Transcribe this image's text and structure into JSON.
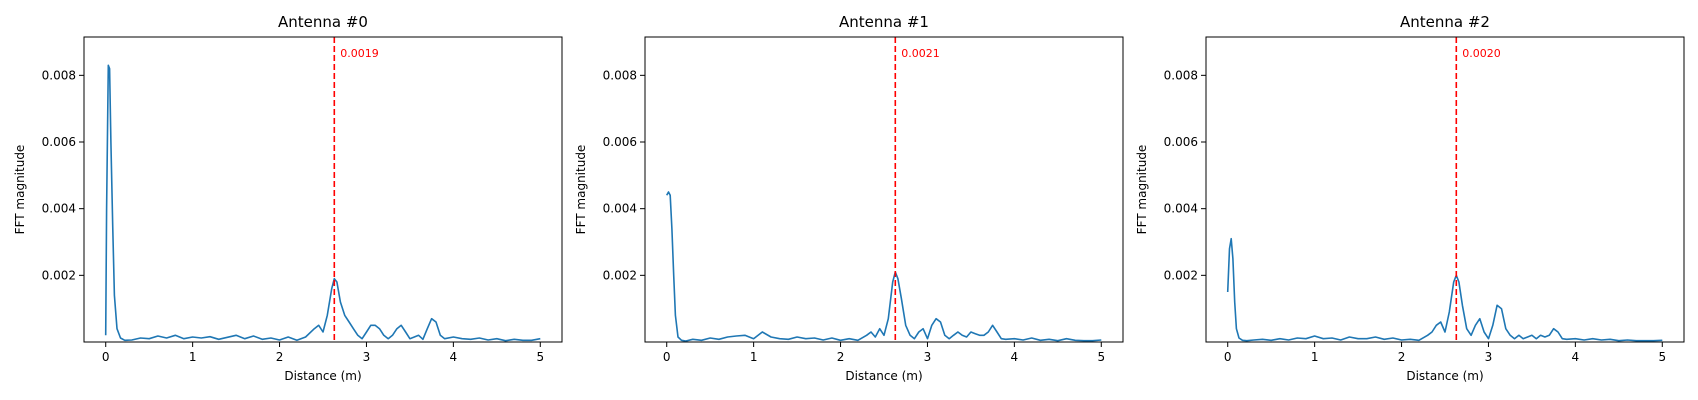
{
  "chart_data": [
    {
      "type": "line",
      "title": "Antenna #0",
      "xlabel": "Distance (m)",
      "ylabel": "FFT magnitude",
      "xlim": [
        -0.25,
        5.25
      ],
      "ylim": [
        0.0,
        0.00915
      ],
      "xticks": [
        0,
        1,
        2,
        3,
        4,
        5
      ],
      "yticks": [
        0.002,
        0.004,
        0.006,
        0.008
      ],
      "ytick_labels": [
        "0.002",
        "0.004",
        "0.006",
        "0.008"
      ],
      "grid": false,
      "line_color": "#1f77b4",
      "marker": {
        "x": 2.63,
        "label": "0.0019",
        "color": "#ff0000"
      },
      "series": [
        {
          "x": [
            0,
            0.01,
            0.03,
            0.045,
            0.06,
            0.08,
            0.1,
            0.13,
            0.17,
            0.22,
            0.3,
            0.4,
            0.5,
            0.6,
            0.7,
            0.8,
            0.9,
            1.0,
            1.1,
            1.2,
            1.3,
            1.4,
            1.5,
            1.6,
            1.7,
            1.8,
            1.9,
            2.0,
            2.1,
            2.2,
            2.3,
            2.4,
            2.45,
            2.5,
            2.55,
            2.6,
            2.63,
            2.66,
            2.7,
            2.75,
            2.8,
            2.85,
            2.9,
            2.95,
            3.0,
            3.05,
            3.1,
            3.15,
            3.2,
            3.25,
            3.3,
            3.35,
            3.4,
            3.45,
            3.5,
            3.55,
            3.6,
            3.65,
            3.7,
            3.75,
            3.8,
            3.85,
            3.9,
            4.0,
            4.1,
            4.2,
            4.3,
            4.4,
            4.5,
            4.6,
            4.7,
            4.8,
            4.9,
            5.0
          ],
          "y": [
            0.0002,
            0.004,
            0.0083,
            0.0082,
            0.006,
            0.0035,
            0.0014,
            0.0004,
            0.00012,
            5e-05,
            6e-05,
            0.00012,
            0.0001,
            0.00018,
            0.00012,
            0.0002,
            0.0001,
            0.00015,
            0.00012,
            0.00016,
            8e-05,
            0.00014,
            0.0002,
            0.0001,
            0.00018,
            8e-05,
            0.00012,
            6e-05,
            0.00015,
            5e-05,
            0.00015,
            0.0004,
            0.0005,
            0.0003,
            0.0008,
            0.0016,
            0.0019,
            0.0018,
            0.0012,
            0.0008,
            0.0006,
            0.0004,
            0.0002,
            0.0001,
            0.0003,
            0.0005,
            0.0005,
            0.0004,
            0.0002,
            0.0001,
            0.0002,
            0.0004,
            0.0005,
            0.0003,
            0.0001,
            0.00015,
            0.0002,
            8e-05,
            0.0004,
            0.0007,
            0.0006,
            0.0002,
            0.0001,
            0.00015,
            0.0001,
            8e-05,
            0.00012,
            6e-05,
            0.0001,
            4e-05,
            8e-05,
            5e-05,
            5e-05,
            0.0001
          ]
        }
      ]
    },
    {
      "type": "line",
      "title": "Antenna #1",
      "xlabel": "Distance (m)",
      "ylabel": "FFT magnitude",
      "xlim": [
        -0.25,
        5.25
      ],
      "ylim": [
        0.0,
        0.00915
      ],
      "xticks": [
        0,
        1,
        2,
        3,
        4,
        5
      ],
      "yticks": [
        0.002,
        0.004,
        0.006,
        0.008
      ],
      "ytick_labels": [
        "0.002",
        "0.004",
        "0.006",
        "0.008"
      ],
      "grid": false,
      "line_color": "#1f77b4",
      "marker": {
        "x": 2.63,
        "label": "0.0021",
        "color": "#ff0000"
      },
      "series": [
        {
          "x": [
            0,
            0.02,
            0.04,
            0.06,
            0.08,
            0.1,
            0.13,
            0.17,
            0.22,
            0.3,
            0.4,
            0.5,
            0.6,
            0.7,
            0.8,
            0.9,
            1.0,
            1.1,
            1.2,
            1.3,
            1.4,
            1.5,
            1.6,
            1.7,
            1.8,
            1.9,
            2.0,
            2.1,
            2.2,
            2.3,
            2.35,
            2.4,
            2.45,
            2.5,
            2.55,
            2.6,
            2.63,
            2.66,
            2.7,
            2.75,
            2.8,
            2.85,
            2.9,
            2.95,
            3.0,
            3.05,
            3.1,
            3.15,
            3.2,
            3.25,
            3.3,
            3.35,
            3.4,
            3.45,
            3.5,
            3.55,
            3.6,
            3.65,
            3.7,
            3.75,
            3.8,
            3.85,
            3.9,
            4.0,
            4.1,
            4.2,
            4.3,
            4.4,
            4.5,
            4.6,
            4.7,
            4.8,
            4.9,
            5.0
          ],
          "y": [
            0.0044,
            0.0045,
            0.0044,
            0.0034,
            0.002,
            0.0008,
            0.00015,
            5e-05,
            3e-05,
            8e-05,
            5e-05,
            0.00012,
            8e-05,
            0.00015,
            0.00018,
            0.0002,
            0.0001,
            0.0003,
            0.00015,
            0.0001,
            8e-05,
            0.00015,
            0.0001,
            0.00012,
            6e-05,
            0.00012,
            5e-05,
            0.0001,
            5e-05,
            0.0002,
            0.0003,
            0.00015,
            0.0004,
            0.0002,
            0.0007,
            0.0018,
            0.0021,
            0.0019,
            0.0013,
            0.0005,
            0.0002,
            0.0001,
            0.0003,
            0.0004,
            0.0001,
            0.0005,
            0.0007,
            0.0006,
            0.0002,
            0.0001,
            0.0002,
            0.0003,
            0.0002,
            0.00015,
            0.0003,
            0.00025,
            0.0002,
            0.0002,
            0.0003,
            0.0005,
            0.0003,
            0.0001,
            8e-05,
            0.0001,
            6e-05,
            0.00012,
            5e-05,
            8e-05,
            4e-05,
            0.0001,
            5e-05,
            4e-05,
            4e-05,
            6e-05
          ]
        }
      ]
    },
    {
      "type": "line",
      "title": "Antenna #2",
      "xlabel": "Distance (m)",
      "ylabel": "FFT magnitude",
      "xlim": [
        -0.25,
        5.25
      ],
      "ylim": [
        0.0,
        0.00915
      ],
      "xticks": [
        0,
        1,
        2,
        3,
        4,
        5
      ],
      "yticks": [
        0.002,
        0.004,
        0.006,
        0.008
      ],
      "ytick_labels": [
        "0.002",
        "0.004",
        "0.006",
        "0.008"
      ],
      "grid": false,
      "line_color": "#1f77b4",
      "marker": {
        "x": 2.63,
        "label": "0.0020",
        "color": "#ff0000"
      },
      "series": [
        {
          "x": [
            0,
            0.02,
            0.04,
            0.06,
            0.08,
            0.1,
            0.13,
            0.17,
            0.22,
            0.3,
            0.4,
            0.5,
            0.6,
            0.7,
            0.8,
            0.9,
            1.0,
            1.1,
            1.2,
            1.3,
            1.4,
            1.5,
            1.6,
            1.7,
            1.8,
            1.9,
            2.0,
            2.1,
            2.2,
            2.3,
            2.35,
            2.4,
            2.45,
            2.5,
            2.55,
            2.6,
            2.63,
            2.66,
            2.7,
            2.75,
            2.8,
            2.85,
            2.9,
            2.95,
            3.0,
            3.05,
            3.1,
            3.15,
            3.2,
            3.25,
            3.3,
            3.35,
            3.4,
            3.45,
            3.5,
            3.55,
            3.6,
            3.65,
            3.7,
            3.75,
            3.8,
            3.85,
            3.9,
            4.0,
            4.1,
            4.2,
            4.3,
            4.4,
            4.5,
            4.6,
            4.7,
            4.8,
            4.9,
            5.0
          ],
          "y": [
            0.0015,
            0.0028,
            0.0031,
            0.0025,
            0.0012,
            0.0004,
            0.00012,
            5e-05,
            4e-05,
            6e-05,
            8e-05,
            5e-05,
            0.0001,
            6e-05,
            0.00012,
            0.0001,
            0.00018,
            0.0001,
            0.00012,
            6e-05,
            0.00015,
            0.0001,
            0.0001,
            0.00015,
            8e-05,
            0.00012,
            6e-05,
            8e-05,
            5e-05,
            0.0002,
            0.0003,
            0.0005,
            0.0006,
            0.0003,
            0.0009,
            0.0018,
            0.002,
            0.0018,
            0.0011,
            0.0004,
            0.0002,
            0.0005,
            0.0007,
            0.0003,
            0.0001,
            0.0005,
            0.0011,
            0.001,
            0.0004,
            0.0002,
            0.0001,
            0.0002,
            0.0001,
            0.00015,
            0.0002,
            0.0001,
            0.0002,
            0.00015,
            0.0002,
            0.0004,
            0.0003,
            0.0001,
            8e-05,
            0.0001,
            6e-05,
            0.0001,
            6e-05,
            8e-05,
            4e-05,
            6e-05,
            4e-05,
            4e-05,
            4e-05,
            5e-05
          ]
        }
      ]
    }
  ]
}
